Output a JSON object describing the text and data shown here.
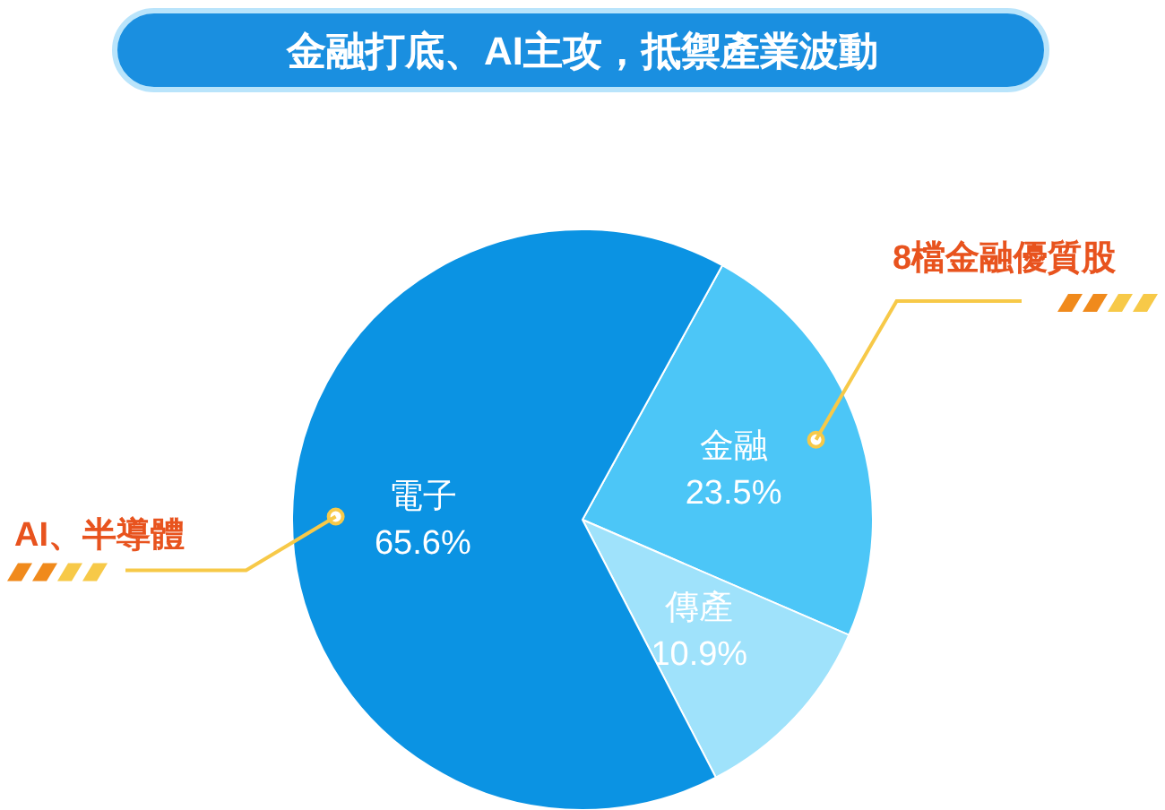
{
  "chart_data": {
    "type": "pie",
    "title": "金融打底、AI主攻，抵禦產業波動",
    "categories": [
      "金融",
      "傳產",
      "電子"
    ],
    "values": [
      23.5,
      10.9,
      65.6
    ],
    "value_labels": [
      "23.5%",
      "10.9%",
      "65.6%"
    ],
    "colors": [
      "#4cc6f7",
      "#9fe2fb",
      "#0b93e3"
    ],
    "annotations": [
      {
        "text": "8檔金融優質股",
        "x": "金融"
      },
      {
        "text": "AI、半導體",
        "x": "電子"
      }
    ]
  }
}
